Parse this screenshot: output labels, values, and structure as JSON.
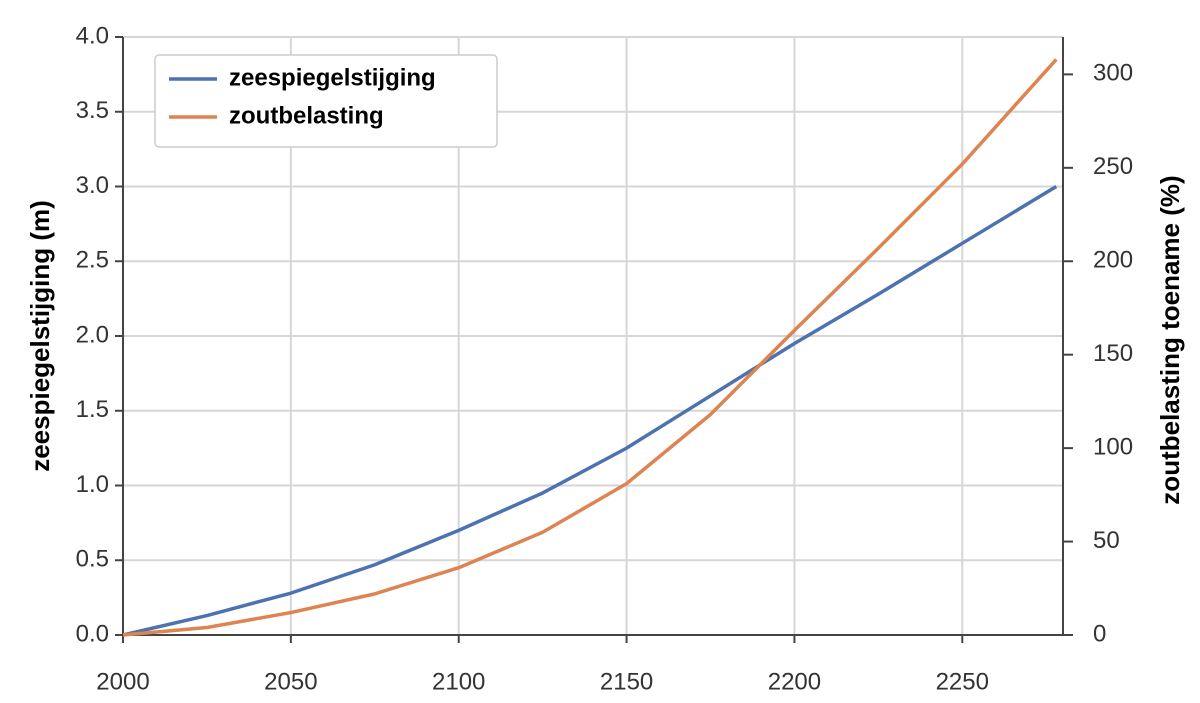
{
  "chart_data": {
    "type": "line",
    "x": [
      2000,
      2025,
      2050,
      2075,
      2100,
      2125,
      2150,
      2175,
      2200,
      2225,
      2250,
      2278
    ],
    "series": [
      {
        "name": "zeespiegelstijging",
        "color": "#4c72b0",
        "values": [
          0,
          0.13,
          0.28,
          0.47,
          0.7,
          0.95,
          1.25,
          1.6,
          1.95,
          2.28,
          2.62,
          3.0
        ]
      },
      {
        "name": "zoutbelasting",
        "color": "#dd8452",
        "axis": "y2",
        "values": [
          0,
          4,
          12,
          22,
          36,
          55,
          81,
          118,
          163,
          207,
          252,
          308
        ]
      }
    ],
    "xlim": [
      2000,
      2280
    ],
    "xticks": [
      2000,
      2050,
      2100,
      2150,
      2200,
      2250
    ],
    "ylim": [
      0,
      4
    ],
    "yticks": [
      {
        "value": 0,
        "label": "0.0"
      },
      {
        "value": 0.5,
        "label": "0.5"
      },
      {
        "value": 1,
        "label": "1.0"
      },
      {
        "value": 1.5,
        "label": "1.5"
      },
      {
        "value": 2,
        "label": "2.0"
      },
      {
        "value": 2.5,
        "label": "2.5"
      },
      {
        "value": 3,
        "label": "3.0"
      },
      {
        "value": 3.5,
        "label": "3.5"
      },
      {
        "value": 4,
        "label": "4.0"
      }
    ],
    "y2lim": [
      0,
      320
    ],
    "y2ticks": [
      0,
      50,
      100,
      150,
      200,
      250,
      300
    ],
    "ylabel": "zeespiegelstijging (m)",
    "y2label": "zoutbelasting toename (%)",
    "grid": true,
    "legend": "upper left"
  }
}
